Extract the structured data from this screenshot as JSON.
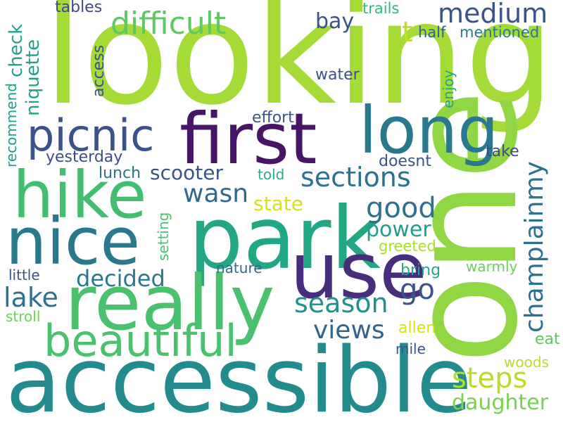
{
  "word_cloud": {
    "words": [
      {
        "text": "looking",
        "color": "#a5db36"
      },
      {
        "text": "one",
        "color": "#90d743"
      },
      {
        "text": "accessible",
        "color": "#228b8d"
      },
      {
        "text": "park",
        "color": "#22a785"
      },
      {
        "text": "really",
        "color": "#4ac16d"
      },
      {
        "text": "first",
        "color": "#481467"
      },
      {
        "text": "use",
        "color": "#472d7b"
      },
      {
        "text": "nice",
        "color": "#2a788e"
      },
      {
        "text": "hike",
        "color": "#42be71"
      },
      {
        "text": "long",
        "color": "#2a788e"
      },
      {
        "text": "beautiful",
        "color": "#4ac16d"
      },
      {
        "text": "picnic",
        "color": "#3b528b"
      },
      {
        "text": "difficult",
        "color": "#5ec962"
      },
      {
        "text": "medium",
        "color": "#3b528b"
      },
      {
        "text": "champlainmy",
        "color": "#2c728e"
      },
      {
        "text": "season",
        "color": "#21918c"
      },
      {
        "text": "sections",
        "color": "#2c728e"
      },
      {
        "text": "views",
        "color": "#33638d"
      },
      {
        "text": "steps",
        "color": "#b5de2b"
      },
      {
        "text": "daughter",
        "color": "#7ad151"
      },
      {
        "text": "lake",
        "color": "#2c728e"
      },
      {
        "text": "good",
        "color": "#2c728e"
      },
      {
        "text": "wasn",
        "color": "#31688e"
      },
      {
        "text": "go",
        "color": "#3b528b"
      },
      {
        "text": "decided",
        "color": "#2a788e"
      },
      {
        "text": "power",
        "color": "#1f9e89"
      },
      {
        "text": "scooter",
        "color": "#3b528b"
      },
      {
        "text": "state",
        "color": "#d8e219"
      },
      {
        "text": "bay",
        "color": "#3b528b"
      },
      {
        "text": "t",
        "color": "#c2df23"
      },
      {
        "text": "check",
        "color": "#20a386"
      },
      {
        "text": "niquette",
        "color": "#1fa187"
      },
      {
        "text": "half",
        "color": "#33638d"
      },
      {
        "text": "mentioned",
        "color": "#2a788e"
      },
      {
        "text": "tables",
        "color": "#3e4989"
      },
      {
        "text": "trails",
        "color": "#35b779"
      },
      {
        "text": "access",
        "color": "#3b528b"
      },
      {
        "text": "water",
        "color": "#3b528b"
      },
      {
        "text": "enjoy",
        "color": "#22a785"
      },
      {
        "text": "effort",
        "color": "#3b528b"
      },
      {
        "text": "recommend",
        "color": "#1f9e89"
      },
      {
        "text": "yesterday",
        "color": "#3e4989"
      },
      {
        "text": "lunch",
        "color": "#2c728e"
      },
      {
        "text": "told",
        "color": "#2ab07f"
      },
      {
        "text": "doesnt",
        "color": "#3b528b"
      },
      {
        "text": "take",
        "color": "#3e4989"
      },
      {
        "text": "setting",
        "color": "#4ac16d"
      },
      {
        "text": "greeted",
        "color": "#addc30"
      },
      {
        "text": "nature",
        "color": "#31688e"
      },
      {
        "text": "little",
        "color": "#3b528b"
      },
      {
        "text": "bring",
        "color": "#22a785"
      },
      {
        "text": "warmly",
        "color": "#6ece58"
      },
      {
        "text": "stroll",
        "color": "#6ece58"
      },
      {
        "text": "allen",
        "color": "#d8e219"
      },
      {
        "text": "mile",
        "color": "#3b528b"
      },
      {
        "text": "eat",
        "color": "#5ec962"
      },
      {
        "text": "woods",
        "color": "#b5de2b"
      }
    ]
  }
}
